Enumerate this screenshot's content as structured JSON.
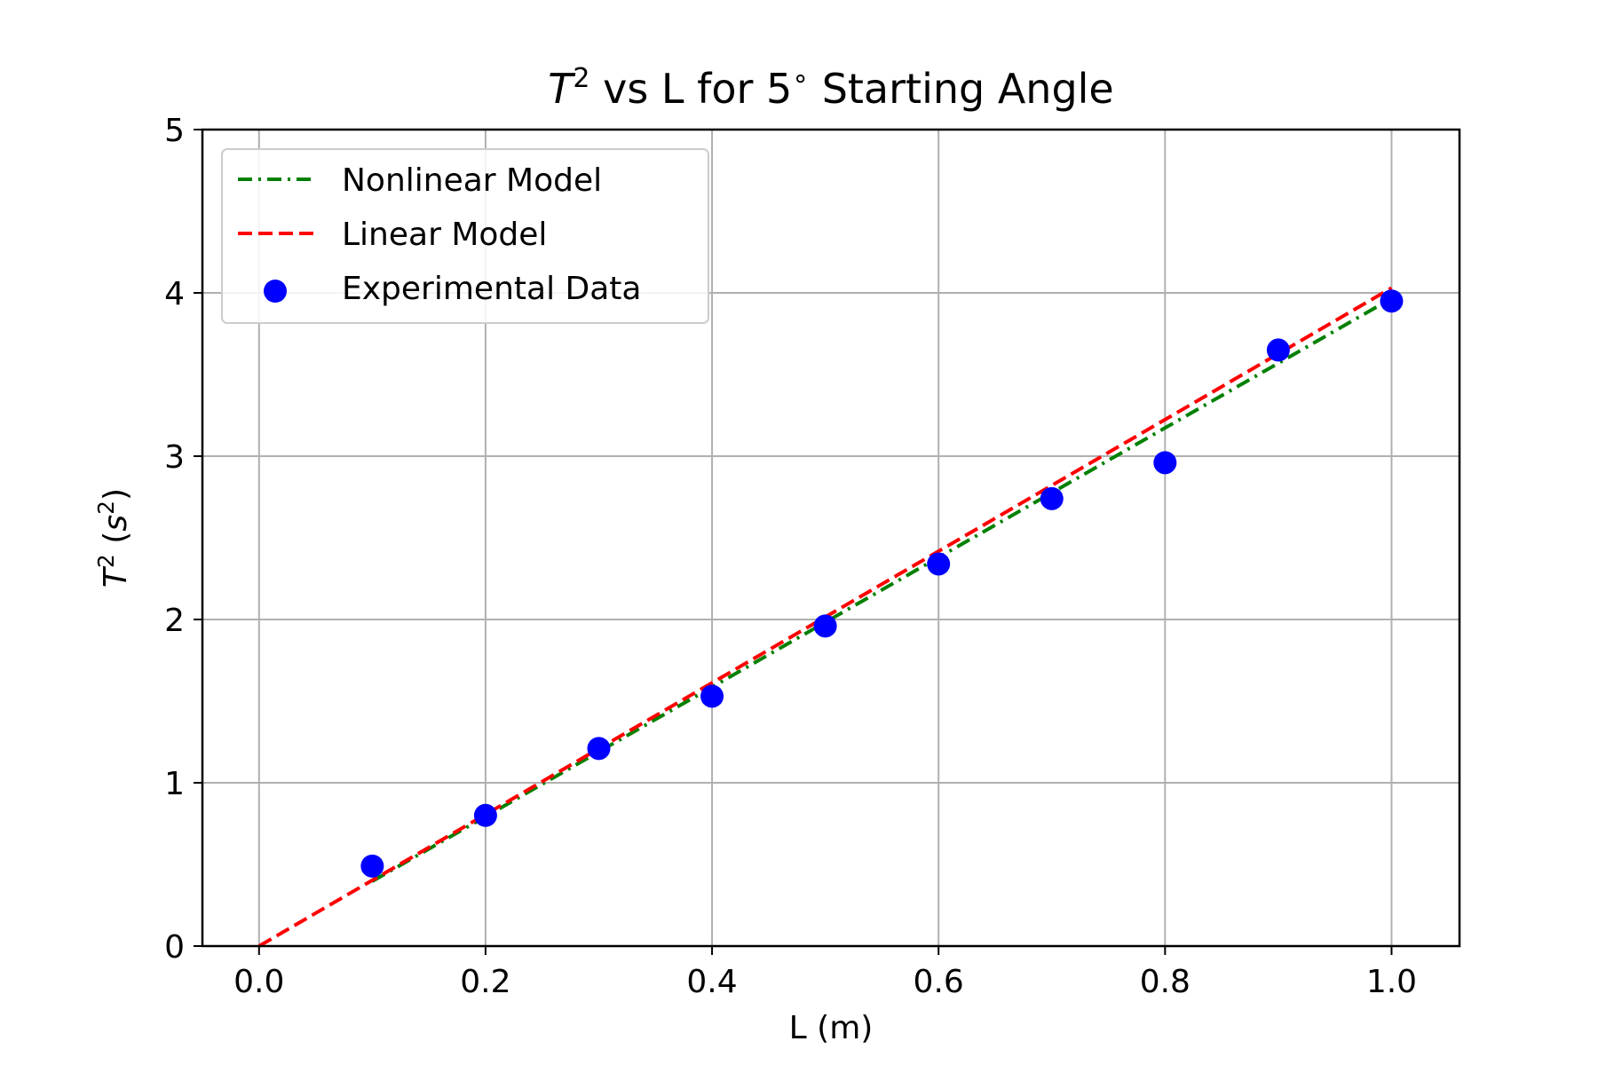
{
  "chart_data": {
    "type": "line",
    "title_parts": {
      "symbol": "T",
      "sup": "2",
      "rest": " vs L for 5",
      "degree": "∘",
      "tail": " Starting Angle"
    },
    "title": "T^2 vs L for 5∘ Starting Angle",
    "xlabel": "L (m)",
    "ylabel_parts": {
      "symbol": "T",
      "sup": "2",
      "mid": " (",
      "unit": "s",
      "unit_sup": "2",
      "close": ")"
    },
    "ylabel": "T^2 (s^2)",
    "xlim": [
      -0.05,
      1.06
    ],
    "ylim": [
      0,
      5
    ],
    "xticks": [
      0.0,
      0.2,
      0.4,
      0.6,
      0.8,
      1.0
    ],
    "xtick_labels": [
      "0.0",
      "0.2",
      "0.4",
      "0.6",
      "0.8",
      "1.0"
    ],
    "yticks": [
      0,
      1,
      2,
      3,
      4,
      5
    ],
    "ytick_labels": [
      "0",
      "1",
      "2",
      "3",
      "4",
      "5"
    ],
    "grid": true,
    "legend_position": "top-left",
    "series": [
      {
        "name": "Nonlinear Model",
        "kind": "line",
        "style": "dashdot",
        "color": "#008000",
        "x": [
          0.1,
          0.2,
          0.3,
          0.4,
          0.5,
          0.6,
          0.7,
          0.8,
          0.9,
          1.0
        ],
        "y": [
          0.397,
          0.793,
          1.19,
          1.586,
          1.983,
          2.38,
          2.776,
          3.173,
          3.569,
          3.966
        ]
      },
      {
        "name": "Linear Model",
        "kind": "line",
        "style": "dashed",
        "color": "#ff0000",
        "x": [
          0.0,
          1.0
        ],
        "y": [
          0.0,
          4.03
        ]
      },
      {
        "name": "Experimental Data",
        "kind": "scatter",
        "color": "#0000ff",
        "x": [
          0.1,
          0.2,
          0.3,
          0.4,
          0.5,
          0.6,
          0.7,
          0.8,
          0.9,
          1.0
        ],
        "y": [
          0.49,
          0.8,
          1.21,
          1.53,
          1.96,
          2.34,
          2.74,
          2.96,
          3.65,
          3.95
        ]
      }
    ]
  }
}
